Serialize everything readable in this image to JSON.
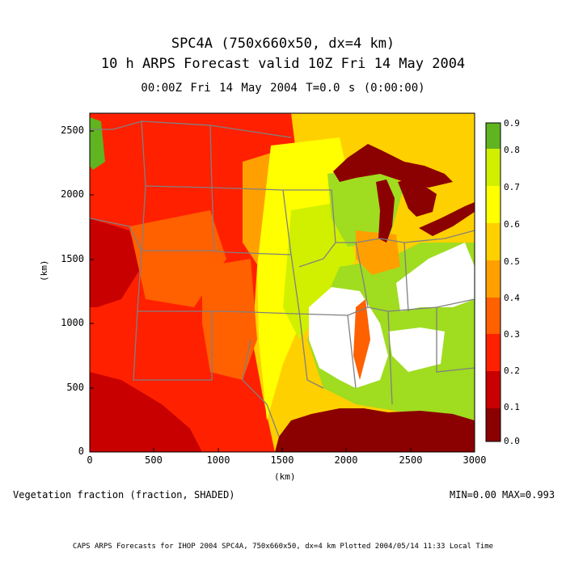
{
  "title_line1": "SPC4A (750x660x50, dx=4 km)",
  "title_line2": "10 h ARPS Forecast valid 10Z Fri 14 May 2004",
  "subtitle": "00:00Z Fri 14 May 2004     T=0.0 s (0:00:00)",
  "x_axis_label": "(km)",
  "y_axis_label": "(km)",
  "x_ticks": [
    "0",
    "500",
    "1000",
    "1500",
    "2000",
    "2500",
    "3000"
  ],
  "y_ticks": [
    "0",
    "500",
    "1000",
    "1500",
    "2000",
    "2500"
  ],
  "field_label": "Vegetation fraction (fraction, SHADED)",
  "minmax": "MIN=0.00 MAX=0.993",
  "footer": "CAPS ARPS Forecasts for IHOP 2004  SPC4A, 750x660x50, dx=4 km  Plotted 2004/05/14 11:33 Local Time",
  "legend": {
    "tick_labels": [
      "0.0",
      "0.1",
      "0.2",
      "0.3",
      "0.4",
      "0.5",
      "0.6",
      "0.7",
      "0.8",
      "0.9"
    ],
    "colors": [
      "#8b0000",
      "#c80000",
      "#ff2000",
      "#ff6000",
      "#ffa000",
      "#ffd000",
      "#ffff00",
      "#d0f000",
      "#a0dc20",
      "#60b420"
    ]
  },
  "map": {
    "x_range_km": [
      0,
      3000
    ],
    "y_range_km": [
      0,
      2640
    ],
    "colors": {
      "water": "#8b0000",
      "no_data": "#ffffff",
      "state_lines": "#808080"
    }
  }
}
